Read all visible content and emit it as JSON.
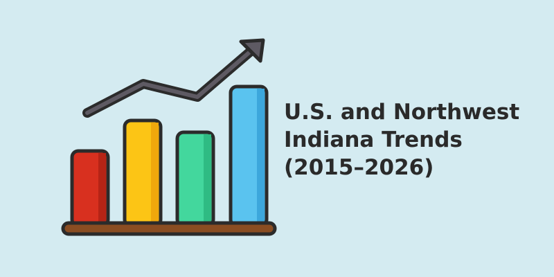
{
  "title_lines": [
    "U.S. and Northwest",
    "Indiana Trends",
    "(2015–2026)"
  ]
}
